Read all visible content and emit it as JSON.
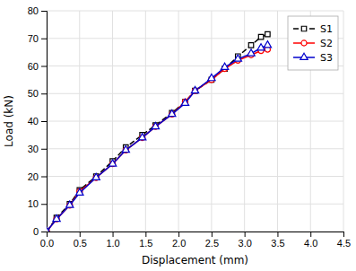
{
  "chart_data": {
    "type": "line",
    "xlabel": "Displacement (mm)",
    "ylabel": "Load (kN)",
    "x": [
      0.0,
      0.15,
      0.35,
      0.5,
      0.75,
      1.0,
      1.2,
      1.45,
      1.65,
      1.9,
      2.1,
      2.25,
      2.5,
      2.7,
      2.9,
      3.1,
      3.25,
      3.35
    ],
    "series": [
      {
        "name": "S1",
        "color": "#000000",
        "line_style": "dashed",
        "marker": "square",
        "values": [
          0.0,
          5.0,
          10.0,
          15.0,
          20.0,
          25.5,
          30.5,
          35.0,
          38.5,
          43.0,
          47.0,
          51.0,
          55.0,
          59.0,
          63.5,
          67.5,
          70.5,
          71.5
        ]
      },
      {
        "name": "S2",
        "color": "#ff0000",
        "line_style": "solid",
        "marker": "circle",
        "values": [
          0.0,
          4.5,
          9.5,
          14.5,
          19.5,
          24.5,
          29.5,
          34.0,
          38.0,
          42.5,
          47.0,
          51.0,
          55.0,
          59.0,
          62.0,
          64.0,
          65.5,
          66.0
        ]
      },
      {
        "name": "S3",
        "color": "#0000cc",
        "line_style": "solid",
        "marker": "triangle",
        "values": [
          0.0,
          4.5,
          9.5,
          14.0,
          19.5,
          24.5,
          29.5,
          34.0,
          38.0,
          42.5,
          46.5,
          51.0,
          55.5,
          59.5,
          62.5,
          64.5,
          66.5,
          67.5
        ]
      }
    ],
    "xlim": [
      0.0,
      4.5
    ],
    "ylim": [
      0,
      80
    ],
    "xticks": [
      {
        "value": 0.0,
        "label": "0.0"
      },
      0.5,
      {
        "value": 1.0,
        "label": "1.0"
      },
      1.5,
      {
        "value": 2.0,
        "label": "2.0"
      },
      2.5,
      {
        "value": 3.0,
        "label": "3.0"
      },
      3.5,
      {
        "value": 4.0,
        "label": "4.0"
      },
      4.5
    ],
    "yticks": [
      0,
      10,
      20,
      30,
      40,
      50,
      60,
      70,
      80
    ],
    "grid": true,
    "legend": "upper right"
  }
}
